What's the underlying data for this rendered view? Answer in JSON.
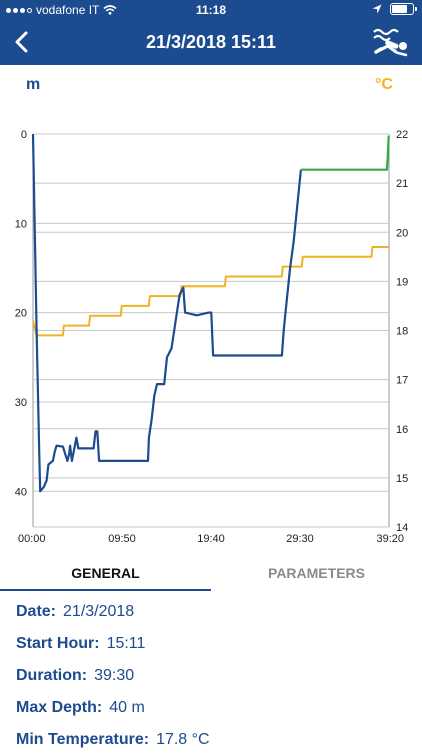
{
  "status_bar": {
    "carrier": "vodafone IT",
    "time": "11:18"
  },
  "nav": {
    "title": "21/3/2018 15:11",
    "back_icon": "chevron-left-icon",
    "action_icon": "diver-icon"
  },
  "colors": {
    "primary": "#1c4b8f",
    "depth_line": "#1c4b8f",
    "temperature_line": "#f0b323",
    "ascent_line": "#2eaa4a"
  },
  "chart_data": {
    "type": "line",
    "left_axis_unit": "m",
    "right_axis_unit": "°C",
    "x_tick_labels": [
      "00:00",
      "09:50",
      "19:40",
      "29:30",
      "39:20"
    ],
    "x_range_min": [
      0,
      39.33
    ],
    "depth_axis": {
      "ticks": [
        0,
        10,
        20,
        30,
        40
      ],
      "range": [
        0,
        44
      ]
    },
    "temperature_axis": {
      "ticks": [
        14,
        15,
        16,
        17,
        18,
        19,
        20,
        21,
        22
      ],
      "range": [
        14,
        22
      ]
    },
    "series": [
      {
        "id": "depth",
        "unit": "m",
        "points": [
          [
            0,
            0
          ],
          [
            0.4,
            22
          ],
          [
            0.7,
            36
          ],
          [
            0.8,
            40
          ],
          [
            1.2,
            39.5
          ],
          [
            1.5,
            38.8
          ],
          [
            1.7,
            37
          ],
          [
            2.2,
            36.6
          ],
          [
            2.4,
            35.6
          ],
          [
            2.6,
            34.9
          ],
          [
            3.3,
            35
          ],
          [
            3.8,
            36.6
          ],
          [
            4.0,
            35.8
          ],
          [
            4.1,
            34.9
          ],
          [
            4.3,
            36.6
          ],
          [
            4.8,
            34
          ],
          [
            5.0,
            35.2
          ],
          [
            6.7,
            35.2
          ],
          [
            6.9,
            33.3
          ],
          [
            7.1,
            33.3
          ],
          [
            7.3,
            36.6
          ],
          [
            12.7,
            36.6
          ],
          [
            12.8,
            34
          ],
          [
            13.1,
            32
          ],
          [
            13.4,
            29.3
          ],
          [
            13.7,
            28
          ],
          [
            14.5,
            28
          ],
          [
            14.8,
            25
          ],
          [
            15.3,
            24
          ],
          [
            15.6,
            22
          ],
          [
            15.9,
            20
          ],
          [
            16.2,
            18
          ],
          [
            16.6,
            17.2
          ],
          [
            16.8,
            20
          ],
          [
            18.1,
            20.3
          ],
          [
            19.4,
            20
          ],
          [
            19.7,
            20
          ],
          [
            19.9,
            24.8
          ],
          [
            27.5,
            24.8
          ],
          [
            27.7,
            22
          ],
          [
            28.0,
            19
          ],
          [
            28.4,
            15
          ],
          [
            28.8,
            12
          ],
          [
            29.6,
            4
          ],
          [
            35.0,
            4
          ],
          [
            36.3,
            4
          ],
          [
            39.1,
            4
          ],
          [
            39.2,
            2.5
          ],
          [
            39.3,
            0.2
          ]
        ]
      },
      {
        "id": "temperature",
        "unit": "°C",
        "points": [
          [
            0,
            18.2
          ],
          [
            0.4,
            17.9
          ],
          [
            3.3,
            17.9
          ],
          [
            3.4,
            18.1
          ],
          [
            6.2,
            18.1
          ],
          [
            6.3,
            18.3
          ],
          [
            9.7,
            18.3
          ],
          [
            9.8,
            18.5
          ],
          [
            12.8,
            18.5
          ],
          [
            12.9,
            18.7
          ],
          [
            16.3,
            18.7
          ],
          [
            16.4,
            18.9
          ],
          [
            21.2,
            18.9
          ],
          [
            21.3,
            19.1
          ],
          [
            27.5,
            19.1
          ],
          [
            27.6,
            19.3
          ],
          [
            29.7,
            19.3
          ],
          [
            29.8,
            19.5
          ],
          [
            37.4,
            19.5
          ],
          [
            37.5,
            19.7
          ],
          [
            39.3,
            19.7
          ]
        ]
      }
    ]
  },
  "tabs": [
    {
      "label": "GENERAL",
      "active": true
    },
    {
      "label": "PARAMETERS",
      "active": false
    }
  ],
  "general": {
    "date_label": "Date:",
    "date_value": "21/3/2018",
    "start_label": "Start Hour:",
    "start_value": "15:11",
    "duration_label": "Duration:",
    "duration_value": "39:30",
    "max_depth_label": "Max Depth:",
    "max_depth_value": "40 m",
    "min_temp_label": "Min Temperature:",
    "min_temp_value": "17.8 °C"
  }
}
